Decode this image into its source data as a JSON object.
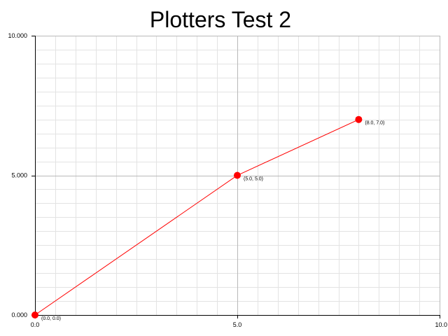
{
  "chart_data": {
    "type": "line",
    "title": "Plotters Test 2",
    "xlabel": "",
    "ylabel": "",
    "xlim": [
      0.0,
      10.0
    ],
    "ylim": [
      0.0,
      10.0
    ],
    "x_ticks": [
      {
        "value": 0.0,
        "label": "0.0"
      },
      {
        "value": 5.0,
        "label": "5.0"
      },
      {
        "value": 10.0,
        "label": "10.0"
      }
    ],
    "y_ticks": [
      {
        "value": 0.0,
        "label": "0.000"
      },
      {
        "value": 5.0,
        "label": "5.000"
      },
      {
        "value": 10.0,
        "label": "10.000"
      }
    ],
    "grid": true,
    "grid_minor_divisions": 10,
    "series": [
      {
        "color": "#ff0000",
        "marker": "circle",
        "x": [
          0.0,
          5.0,
          8.0
        ],
        "y": [
          0.0,
          5.0,
          7.0
        ],
        "point_labels": [
          "(0.0, 0.0)",
          "(5.0, 5.0)",
          "(8.0, 7.0)"
        ]
      }
    ],
    "colors": {
      "axis": "#000000",
      "major_grid": "#b8b8b8",
      "minor_grid": "#e3e3e3",
      "series": "#ff0000"
    }
  }
}
